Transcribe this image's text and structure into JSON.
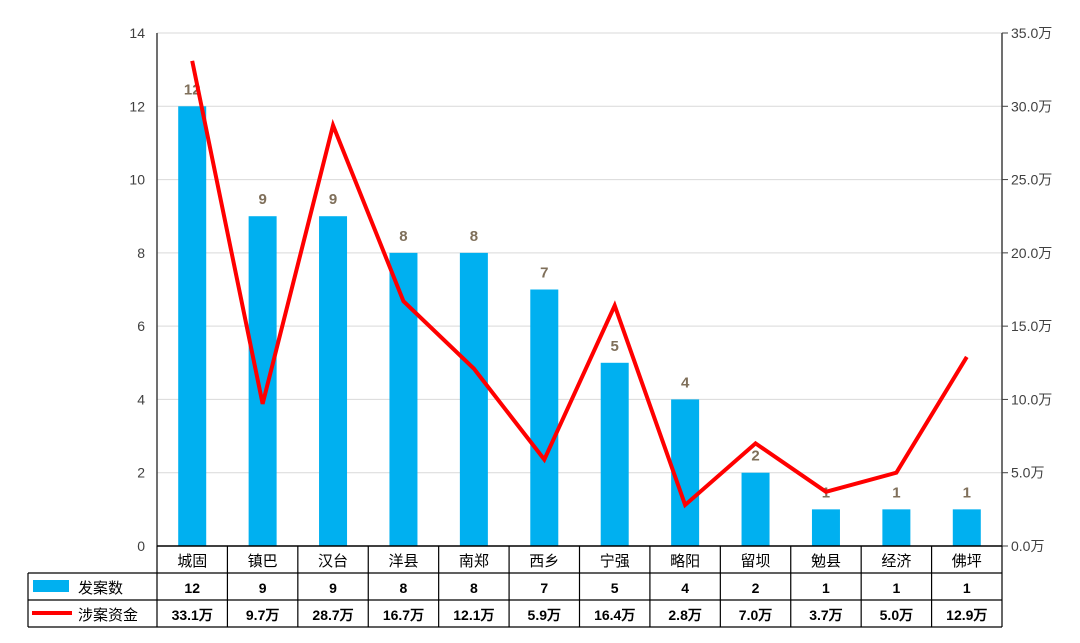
{
  "chart_data": {
    "type": "bar+line",
    "categories": [
      "城固",
      "镇巴",
      "汉台",
      "洋县",
      "南郑",
      "西乡",
      "宁强",
      "略阳",
      "留坝",
      "勉县",
      "经济",
      "佛坪"
    ],
    "series": [
      {
        "name": "发案数",
        "type": "bar",
        "axis": "left",
        "color": "#00B0F0",
        "values": [
          12,
          9,
          9,
          8,
          8,
          7,
          5,
          4,
          2,
          1,
          1,
          1
        ],
        "labels": [
          "12",
          "9",
          "9",
          "8",
          "8",
          "7",
          "5",
          "4",
          "2",
          "1",
          "1",
          "1"
        ]
      },
      {
        "name": "涉案资金",
        "type": "line",
        "axis": "right",
        "color": "#FF0000",
        "values": [
          33.1,
          9.7,
          28.7,
          16.7,
          12.1,
          5.9,
          16.4,
          2.8,
          7.0,
          3.7,
          5.0,
          12.9
        ],
        "labels": [
          "33.1万",
          "9.7万",
          "28.7万",
          "16.7万",
          "12.1万",
          "5.9万",
          "16.4万",
          "2.8万",
          "7.0万",
          "3.7万",
          "5.0万",
          "12.9万"
        ]
      }
    ],
    "left_axis": {
      "range": [
        0,
        14
      ],
      "ticks": [
        "0",
        "2",
        "4",
        "6",
        "8",
        "10",
        "12",
        "14"
      ]
    },
    "right_axis": {
      "range": [
        0,
        35
      ],
      "ticks": [
        "0.0万",
        "5.0万",
        "10.0万",
        "15.0万",
        "20.0万",
        "25.0万",
        "30.0万",
        "35.0万"
      ]
    },
    "grid": true,
    "legend": "data-table-below"
  }
}
